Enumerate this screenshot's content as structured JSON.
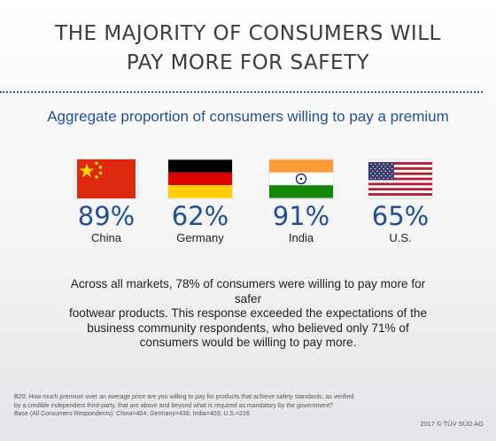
{
  "header": {
    "title_line1": "THE MAJORITY OF CONSUMERS WILL",
    "title_line2": "PAY MORE FOR SAFETY"
  },
  "chart_data": {
    "type": "table",
    "title": "THE MAJORITY OF CONSUMERS WILL PAY MORE FOR SAFETY",
    "subtitle": "Aggregate proportion of consumers willing to pay a premium",
    "categories": [
      "China",
      "Germany",
      "India",
      "U.S."
    ],
    "values": [
      89,
      62,
      91,
      65
    ],
    "value_labels": [
      "89%",
      "62%",
      "91%",
      "65%"
    ],
    "flags": [
      "china-flag-icon",
      "germany-flag-icon",
      "india-flag-icon",
      "us-flag-icon"
    ]
  },
  "body": {
    "paragraph_line1": "Across all markets, 78% of consumers were willing to pay more for safer",
    "paragraph_line2": "footwear products. This response exceeded the expectations of the",
    "paragraph_line3": "business community respondents, who believed only 71% of",
    "paragraph_line4": "consumers would be willing to pay more."
  },
  "footer": {
    "note_line1": "B20: How much premium over an average price are you willing to pay for products that achieve safety standards, as verified",
    "note_line2": "by a credible independent third-party, that are above and beyond what is required as mandatory by the government?",
    "note_line3": "Base (All Consumers Respondents): China=404; Germany=438; India=403; U.S.=216",
    "copyright": "2017 © TÜV SÜD AG"
  },
  "colors": {
    "accent_blue": "#1f4e9d",
    "title_gray": "#3c3c3c"
  }
}
